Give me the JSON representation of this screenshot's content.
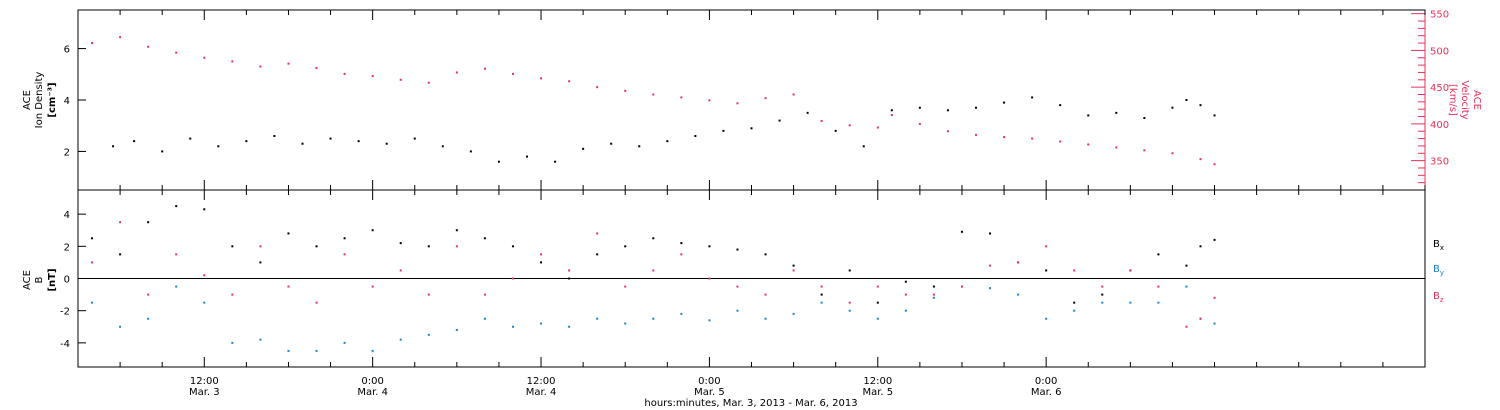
{
  "chart_data": [
    {
      "type": "scatter",
      "panel": "top",
      "ylabel_left": [
        "ACE",
        "Ion Density",
        "[cm⁻³]"
      ],
      "ylabel_right": [
        "ACE",
        "Velocity",
        "[km/s]"
      ],
      "yticks_left": [
        2,
        4,
        6
      ],
      "ylim_left": [
        0.5,
        7.5
      ],
      "yticks_right": [
        350,
        400,
        450,
        500,
        550
      ],
      "ylim_right": [
        310,
        555
      ],
      "colors": {
        "density": "#000000",
        "velocity": "#e8325a"
      },
      "series": [
        {
          "axis": "left",
          "color": "#000000",
          "points": [
            [
              2.5,
              2.2
            ],
            [
              4,
              2.4
            ],
            [
              6,
              2.0
            ],
            [
              8,
              2.5
            ],
            [
              10,
              2.2
            ],
            [
              12,
              2.4
            ],
            [
              14,
              2.6
            ],
            [
              16,
              2.3
            ],
            [
              18,
              2.5
            ],
            [
              20,
              2.4
            ],
            [
              22,
              2.3
            ],
            [
              24,
              2.5
            ],
            [
              26,
              2.2
            ],
            [
              28,
              2.0
            ],
            [
              30,
              1.6
            ],
            [
              32,
              1.8
            ],
            [
              34,
              1.6
            ],
            [
              36,
              2.1
            ],
            [
              38,
              2.3
            ],
            [
              40,
              2.2
            ],
            [
              42,
              2.4
            ],
            [
              44,
              2.6
            ],
            [
              46,
              2.8
            ],
            [
              48,
              2.9
            ],
            [
              50,
              3.2
            ],
            [
              52,
              3.5
            ],
            [
              54,
              2.8
            ],
            [
              56,
              2.2
            ],
            [
              58,
              3.6
            ],
            [
              60,
              3.7
            ],
            [
              62,
              3.6
            ],
            [
              64,
              3.7
            ],
            [
              66,
              3.9
            ],
            [
              68,
              4.1
            ],
            [
              70,
              3.8
            ],
            [
              72,
              3.4
            ],
            [
              74,
              3.5
            ],
            [
              76,
              3.3
            ],
            [
              78,
              3.7
            ],
            [
              79,
              4.0
            ],
            [
              80,
              3.8
            ],
            [
              81,
              3.4
            ]
          ]
        },
        {
          "axis": "right",
          "color": "#e8325a",
          "points": [
            [
              1,
              510
            ],
            [
              3,
              518
            ],
            [
              5,
              505
            ],
            [
              7,
              497
            ],
            [
              9,
              490
            ],
            [
              11,
              485
            ],
            [
              13,
              478
            ],
            [
              15,
              482
            ],
            [
              17,
              476
            ],
            [
              19,
              468
            ],
            [
              21,
              465
            ],
            [
              23,
              460
            ],
            [
              25,
              456
            ],
            [
              27,
              470
            ],
            [
              29,
              475
            ],
            [
              31,
              468
            ],
            [
              33,
              462
            ],
            [
              35,
              458
            ],
            [
              37,
              450
            ],
            [
              39,
              445
            ],
            [
              41,
              440
            ],
            [
              43,
              436
            ],
            [
              45,
              432
            ],
            [
              47,
              428
            ],
            [
              49,
              435
            ],
            [
              51,
              440
            ],
            [
              53,
              404
            ],
            [
              55,
              398
            ],
            [
              57,
              395
            ],
            [
              58,
              412
            ],
            [
              60,
              400
            ],
            [
              62,
              390
            ],
            [
              64,
              385
            ],
            [
              66,
              382
            ],
            [
              68,
              380
            ],
            [
              70,
              376
            ],
            [
              72,
              372
            ],
            [
              74,
              368
            ],
            [
              76,
              364
            ],
            [
              78,
              360
            ],
            [
              80,
              352
            ],
            [
              81,
              345
            ]
          ]
        }
      ]
    },
    {
      "type": "scatter",
      "panel": "bottom",
      "ylabel": [
        "ACE",
        "B",
        "[nT]"
      ],
      "yticks": [
        -4,
        -2,
        0,
        2,
        4
      ],
      "ylim": [
        -5.5,
        5.5
      ],
      "legend": [
        {
          "name": "B",
          "sub": "x",
          "color": "#000000"
        },
        {
          "name": "B",
          "sub": "y",
          "color": "#1e82d2"
        },
        {
          "name": "B",
          "sub": "z",
          "color": "#e8325a"
        }
      ],
      "series": [
        {
          "name": "Bx",
          "color": "#000000",
          "points": [
            [
              1,
              2.5
            ],
            [
              3,
              1.5
            ],
            [
              5,
              3.5
            ],
            [
              7,
              4.5
            ],
            [
              9,
              4.3
            ],
            [
              11,
              2.0
            ],
            [
              13,
              1.0
            ],
            [
              15,
              2.8
            ],
            [
              17,
              2.0
            ],
            [
              19,
              2.5
            ],
            [
              21,
              3.0
            ],
            [
              23,
              2.2
            ],
            [
              25,
              2.0
            ],
            [
              27,
              3.0
            ],
            [
              29,
              2.5
            ],
            [
              31,
              2.0
            ],
            [
              33,
              1.0
            ],
            [
              35,
              0.0
            ],
            [
              37,
              1.5
            ],
            [
              39,
              2.0
            ],
            [
              41,
              2.5
            ],
            [
              43,
              2.2
            ],
            [
              45,
              2.0
            ],
            [
              47,
              1.8
            ],
            [
              49,
              1.5
            ],
            [
              51,
              0.8
            ],
            [
              53,
              -1.0
            ],
            [
              55,
              0.5
            ],
            [
              57,
              -1.5
            ],
            [
              59,
              -0.2
            ],
            [
              61,
              -0.5
            ],
            [
              63,
              2.9
            ],
            [
              65,
              2.8
            ],
            [
              67,
              1.0
            ],
            [
              69,
              0.5
            ],
            [
              71,
              -1.5
            ],
            [
              73,
              -1.0
            ],
            [
              75,
              0.5
            ],
            [
              77,
              1.5
            ],
            [
              79,
              0.8
            ],
            [
              80,
              2.0
            ],
            [
              81,
              2.4
            ]
          ]
        },
        {
          "name": "By",
          "color": "#1e82d2",
          "points": [
            [
              1,
              -1.5
            ],
            [
              3,
              -3.0
            ],
            [
              5,
              -2.5
            ],
            [
              7,
              -0.5
            ],
            [
              9,
              -1.5
            ],
            [
              11,
              -4.0
            ],
            [
              13,
              -3.8
            ],
            [
              15,
              -4.5
            ],
            [
              17,
              -4.5
            ],
            [
              19,
              -4.0
            ],
            [
              21,
              -4.5
            ],
            [
              23,
              -3.8
            ],
            [
              25,
              -3.5
            ],
            [
              27,
              -3.2
            ],
            [
              29,
              -2.5
            ],
            [
              31,
              -3.0
            ],
            [
              33,
              -2.8
            ],
            [
              35,
              -3.0
            ],
            [
              37,
              -2.5
            ],
            [
              39,
              -2.8
            ],
            [
              41,
              -2.5
            ],
            [
              43,
              -2.2
            ],
            [
              45,
              -2.6
            ],
            [
              47,
              -2.0
            ],
            [
              49,
              -2.5
            ],
            [
              51,
              -2.2
            ],
            [
              53,
              -1.5
            ],
            [
              55,
              -2.0
            ],
            [
              57,
              -2.5
            ],
            [
              59,
              -2.0
            ],
            [
              61,
              -1.2
            ],
            [
              63,
              -0.5
            ],
            [
              65,
              -0.6
            ],
            [
              67,
              -1.0
            ],
            [
              69,
              -2.5
            ],
            [
              71,
              -2.0
            ],
            [
              73,
              -1.5
            ],
            [
              75,
              -1.5
            ],
            [
              77,
              -1.5
            ],
            [
              79,
              -0.5
            ],
            [
              80,
              -2.5
            ],
            [
              81,
              -2.8
            ]
          ]
        },
        {
          "name": "Bz",
          "color": "#e8325a",
          "points": [
            [
              1,
              1.0
            ],
            [
              3,
              3.5
            ],
            [
              5,
              -1.0
            ],
            [
              7,
              1.5
            ],
            [
              9,
              0.2
            ],
            [
              11,
              -1.0
            ],
            [
              13,
              2.0
            ],
            [
              15,
              -0.5
            ],
            [
              17,
              -1.5
            ],
            [
              19,
              1.5
            ],
            [
              21,
              -0.5
            ],
            [
              23,
              0.5
            ],
            [
              25,
              -1.0
            ],
            [
              27,
              2.0
            ],
            [
              29,
              -1.0
            ],
            [
              31,
              0.0
            ],
            [
              33,
              1.5
            ],
            [
              35,
              0.5
            ],
            [
              37,
              2.8
            ],
            [
              39,
              -0.5
            ],
            [
              41,
              0.5
            ],
            [
              43,
              1.5
            ],
            [
              45,
              0.0
            ],
            [
              47,
              -0.5
            ],
            [
              49,
              -1.0
            ],
            [
              51,
              0.5
            ],
            [
              53,
              -0.5
            ],
            [
              55,
              -1.5
            ],
            [
              57,
              -0.5
            ],
            [
              59,
              -1.0
            ],
            [
              61,
              -1.0
            ],
            [
              63,
              -0.5
            ],
            [
              65,
              0.8
            ],
            [
              67,
              1.0
            ],
            [
              69,
              2.0
            ],
            [
              71,
              0.5
            ],
            [
              73,
              -0.5
            ],
            [
              75,
              0.5
            ],
            [
              77,
              -0.5
            ],
            [
              79,
              -3.0
            ],
            [
              80,
              -2.5
            ],
            [
              81,
              -1.2
            ]
          ]
        }
      ]
    }
  ],
  "xaxis": {
    "range_hours": [
      0,
      96
    ],
    "major_ticks": [
      {
        "hour": 9,
        "time": "12:00",
        "date": "Mar. 3"
      },
      {
        "hour": 21,
        "time": "0:00",
        "date": "Mar. 4"
      },
      {
        "hour": 33,
        "time": "12:00",
        "date": "Mar. 4"
      },
      {
        "hour": 45,
        "time": "0:00",
        "date": "Mar. 5"
      },
      {
        "hour": 57,
        "time": "12:00",
        "date": "Mar. 5"
      },
      {
        "hour": 69,
        "time": "0:00",
        "date": "Mar. 6"
      }
    ],
    "xlabel": "hours:minutes, Mar.  3, 2013 - Mar.  6, 2013"
  }
}
